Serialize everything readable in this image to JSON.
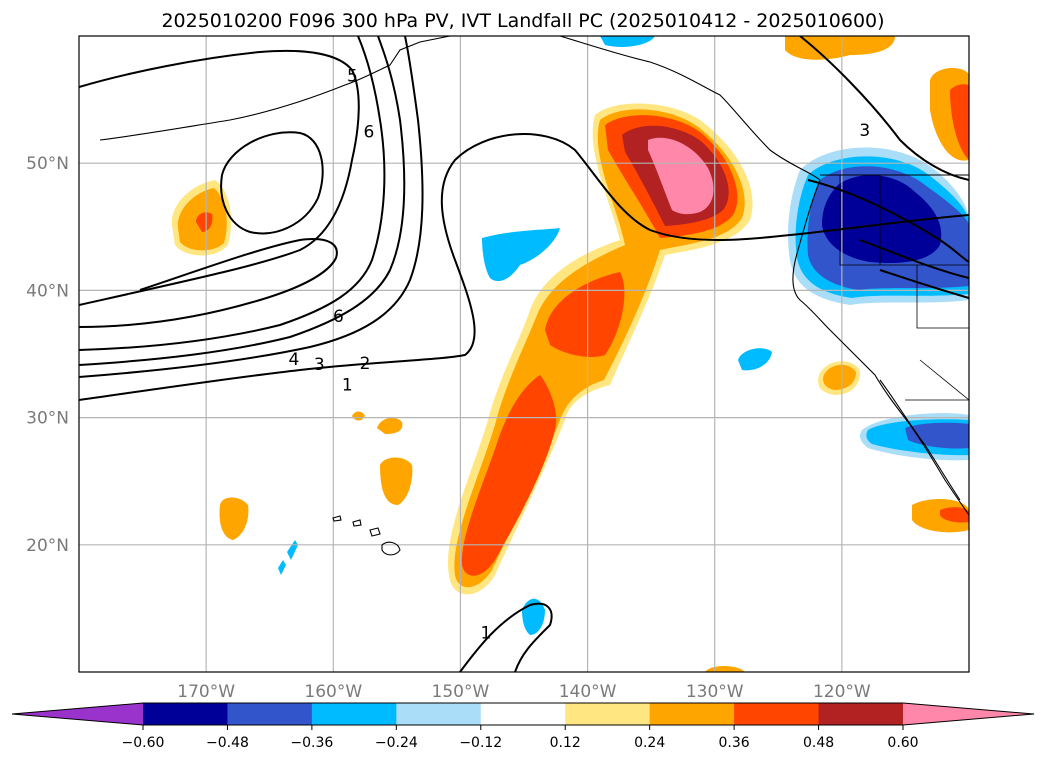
{
  "chart_data": {
    "type": "heatmap",
    "title": "2025010200 F096 300 hPa PV, IVT Landfall PC (2025010412 - 2025010600)",
    "map_extent": {
      "lon": [
        -180,
        -110
      ],
      "lat": [
        10,
        60
      ]
    },
    "lat_ticks": [
      {
        "value": 20,
        "label": "20°N"
      },
      {
        "value": 30,
        "label": "30°N"
      },
      {
        "value": 40,
        "label": "40°N"
      },
      {
        "value": 50,
        "label": "50°N"
      }
    ],
    "lon_ticks": [
      {
        "value": -170,
        "label": "170°W"
      },
      {
        "value": -160,
        "label": "160°W"
      },
      {
        "value": -150,
        "label": "150°W"
      },
      {
        "value": -140,
        "label": "140°W"
      },
      {
        "value": -130,
        "label": "130°W"
      },
      {
        "value": -120,
        "label": "120°W"
      }
    ],
    "grid": true,
    "colorbar": {
      "extend": "both",
      "levels": [
        -0.6,
        -0.48,
        -0.36,
        -0.24,
        -0.12,
        0.12,
        0.24,
        0.36,
        0.48,
        0.6
      ],
      "tick_labels": [
        "−0.60",
        "−0.48",
        "−0.36",
        "−0.24",
        "−0.12",
        "0.12",
        "0.24",
        "0.36",
        "0.48",
        "0.60"
      ],
      "colors": [
        "#9933cc",
        "#000099",
        "#3355cc",
        "#00bbff",
        "#aaddf7",
        "#ffffff",
        "#ffe680",
        "#ffa500",
        "#ff4500",
        "#b22222",
        "#ff88aa"
      ]
    },
    "pv_contour_labels": [
      {
        "text": "5",
        "lon": -158.5,
        "lat": 56.9
      },
      {
        "text": "6",
        "lon": -157.2,
        "lat": 52.5
      },
      {
        "text": "6",
        "lon": -159.6,
        "lat": 38.0
      },
      {
        "text": "4",
        "lon": -163.1,
        "lat": 34.6
      },
      {
        "text": "3",
        "lon": -161.1,
        "lat": 34.2
      },
      {
        "text": "2",
        "lon": -157.5,
        "lat": 34.3
      },
      {
        "text": "1",
        "lon": -158.9,
        "lat": 32.6
      },
      {
        "text": "1",
        "lon": -148.0,
        "lat": 13.1
      },
      {
        "text": "3",
        "lon": -118.2,
        "lat": 52.6
      }
    ]
  }
}
